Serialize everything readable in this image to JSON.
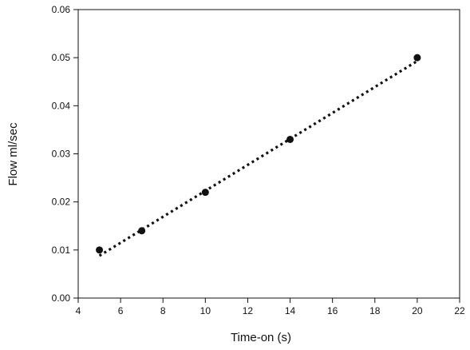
{
  "chart_data": {
    "type": "scatter",
    "title": "",
    "xlabel": "Time-on (s)",
    "ylabel": "Flow ml/sec",
    "xlim": [
      4,
      22
    ],
    "ylim": [
      0,
      0.06
    ],
    "x_ticks": [
      "4",
      "6",
      "8",
      "10",
      "12",
      "14",
      "16",
      "18",
      "20",
      "22"
    ],
    "y_ticks": [
      "0.00",
      "0.01",
      "0.02",
      "0.03",
      "0.04",
      "0.05",
      "0.06"
    ],
    "grid": false,
    "legend": "none",
    "series": [
      {
        "points": [
          {
            "x": 5,
            "y": 0.01
          },
          {
            "x": 7,
            "y": 0.014
          },
          {
            "x": 10,
            "y": 0.022
          },
          {
            "x": 14,
            "y": 0.033
          },
          {
            "x": 20,
            "y": 0.05
          }
        ],
        "marker": "circle",
        "color": "#111111"
      }
    ],
    "trendline": {
      "style": "dotted",
      "color": "#111111",
      "start": {
        "x": 5,
        "y": 0.0088
      },
      "end": {
        "x": 20,
        "y": 0.0493
      }
    }
  }
}
